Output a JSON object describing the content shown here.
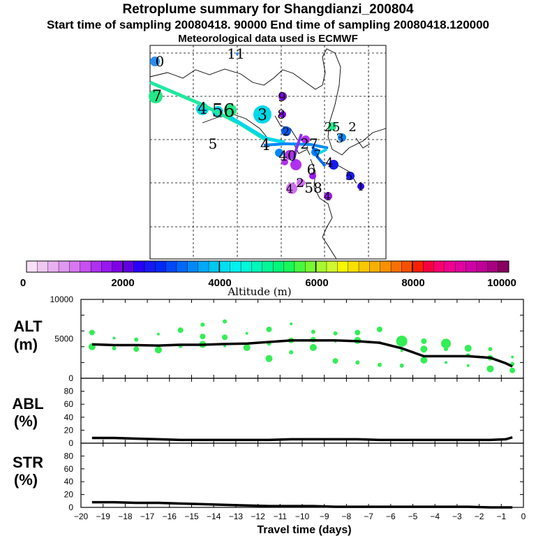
{
  "header": {
    "title": "Retroplume summary for Shangdianzi_200804",
    "subtitle": "Start time of sampling 20080418. 90000     End time of sampling 20080418.120000",
    "met_note": "Meteorological data used is ECMWF"
  },
  "map_labels": [
    "0",
    "11",
    "7",
    "4",
    "56",
    "3",
    "9",
    "8",
    "2",
    "25",
    "2",
    "3",
    "5",
    "4",
    "40",
    "27",
    "7",
    "4",
    "5",
    "1",
    "6",
    "2",
    "58",
    "4",
    "4"
  ],
  "colorbar": {
    "tick_labels": [
      "0",
      "2000",
      "4000",
      "6000",
      "8000",
      "10000"
    ],
    "label": "Altitude (m)",
    "colors": [
      "#f8e0f8",
      "#f0c8f0",
      "#e8b0f0",
      "#e098f0",
      "#d878f0",
      "#c850f0",
      "#b030f0",
      "#9818f0",
      "#8000e8",
      "#6000e0",
      "#2800f8",
      "#1818f0",
      "#0028f8",
      "#0048f8",
      "#0068f8",
      "#0088f8",
      "#00a8f8",
      "#00c8f0",
      "#00e0f0",
      "#00f0f0",
      "#00f8d8",
      "#00f8b8",
      "#00f898",
      "#00f878",
      "#18f858",
      "#48f840",
      "#78f830",
      "#a8f830",
      "#d0f830",
      "#f8f800",
      "#f8e000",
      "#f8c800",
      "#f8b000",
      "#f89000",
      "#f87000",
      "#f85000",
      "#f82000",
      "#f80040",
      "#f80070",
      "#f00090",
      "#e000a0",
      "#d000a8",
      "#c00098",
      "#a80080",
      "#880060"
    ]
  },
  "chart_data": [
    {
      "type": "line",
      "panel": "ALT",
      "ylabel": "ALT\n(m)",
      "ylim": [
        0,
        10000
      ],
      "yticks": [
        "10000",
        "5000",
        "0"
      ],
      "x": [
        -19.5,
        -18.5,
        -17.5,
        -16.5,
        -15.5,
        -14.5,
        -13.5,
        -12.5,
        -11.5,
        -10.5,
        -9.5,
        -8.5,
        -7.5,
        -6.5,
        -5.5,
        -4.5,
        -3.5,
        -2.5,
        -1.5,
        -0.8,
        -0.5
      ],
      "series": [
        {
          "name": "median altitude",
          "values": [
            4300,
            4200,
            4200,
            4150,
            4250,
            4250,
            4350,
            4400,
            4600,
            4800,
            4800,
            4800,
            4700,
            4500,
            3800,
            2800,
            2800,
            2800,
            2600,
            1900,
            1500
          ]
        }
      ],
      "scatter_values": [
        [
          -19.5,
          4000
        ],
        [
          -19.5,
          5800
        ],
        [
          -18.5,
          3800
        ],
        [
          -18.5,
          5100
        ],
        [
          -17.5,
          3700
        ],
        [
          -17.5,
          4900
        ],
        [
          -16.5,
          3600
        ],
        [
          -16.5,
          5600
        ],
        [
          -15.5,
          4100
        ],
        [
          -15.5,
          6100
        ],
        [
          -14.5,
          4300
        ],
        [
          -14.5,
          5300
        ],
        [
          -14.5,
          6800
        ],
        [
          -13.5,
          4100
        ],
        [
          -13.5,
          5200
        ],
        [
          -13.5,
          7200
        ],
        [
          -12.5,
          3900
        ],
        [
          -12.5,
          5700
        ],
        [
          -11.5,
          4400
        ],
        [
          -11.5,
          6200
        ],
        [
          -11.5,
          2500
        ],
        [
          -10.5,
          4800
        ],
        [
          -10.5,
          3300
        ],
        [
          -10.5,
          6900
        ],
        [
          -9.5,
          4900
        ],
        [
          -9.5,
          5900
        ],
        [
          -9.5,
          3900
        ],
        [
          -8.5,
          4700
        ],
        [
          -8.5,
          5700
        ],
        [
          -8.5,
          2200
        ],
        [
          -7.5,
          4800
        ],
        [
          -7.5,
          5800
        ],
        [
          -7.5,
          2000
        ],
        [
          -6.5,
          4500
        ],
        [
          -6.5,
          6200
        ],
        [
          -6.5,
          1700
        ],
        [
          -5.5,
          4600
        ],
        [
          -5.5,
          3500
        ],
        [
          -5.5,
          1600
        ],
        [
          -4.5,
          3700
        ],
        [
          -4.5,
          2300
        ],
        [
          -4.5,
          4700
        ],
        [
          -3.5,
          3700
        ],
        [
          -3.5,
          2000
        ],
        [
          -3.5,
          4500
        ],
        [
          -2.5,
          2900
        ],
        [
          -2.5,
          3800
        ],
        [
          -2.5,
          1600
        ],
        [
          -1.5,
          3700
        ],
        [
          -1.5,
          2600
        ],
        [
          -1.5,
          1200
        ],
        [
          -0.5,
          1000
        ],
        [
          -0.5,
          1800
        ],
        [
          -0.5,
          2700
        ]
      ]
    },
    {
      "type": "line",
      "panel": "ABL",
      "ylabel": "ABL\n(%)",
      "ylim": [
        0,
        100
      ],
      "yticks": [
        "80",
        "60",
        "40",
        "20",
        "0"
      ],
      "x": [
        -19.5,
        -18.5,
        -17.5,
        -16.5,
        -15.5,
        -14.5,
        -13.5,
        -12.5,
        -11.5,
        -10.5,
        -9.5,
        -8.5,
        -7.5,
        -6.5,
        -5.5,
        -4.5,
        -3.5,
        -2.5,
        -1.5,
        -0.8,
        -0.5
      ],
      "series": [
        {
          "name": "ABL fraction",
          "values": [
            8,
            8,
            7,
            6,
            5,
            5,
            5,
            5,
            5,
            6,
            6,
            6,
            6,
            5,
            5,
            5,
            5,
            5,
            5,
            6,
            9
          ]
        }
      ]
    },
    {
      "type": "line",
      "panel": "STR",
      "ylabel": "STR\n(%)",
      "ylim": [
        0,
        100
      ],
      "yticks": [
        "80",
        "60",
        "40",
        "20",
        "0"
      ],
      "x": [
        -19.5,
        -18.5,
        -17.5,
        -16.5,
        -15.5,
        -14.5,
        -13.5,
        -12.5,
        -11.5,
        -10.5,
        -9.5,
        -8.5,
        -7.5,
        -6.5,
        -5.5,
        -4.5,
        -3.5,
        -2.5,
        -1.5,
        -0.8,
        -0.5
      ],
      "series": [
        {
          "name": "STR fraction",
          "values": [
            8,
            8,
            7,
            7,
            6,
            5,
            4,
            3,
            2,
            2,
            2,
            1,
            1,
            1,
            1,
            1,
            1,
            1,
            0,
            0,
            0
          ]
        }
      ]
    }
  ],
  "xaxis": {
    "tick_labels": [
      "−20",
      "−19",
      "−18",
      "−17",
      "−16",
      "−15",
      "−14",
      "−13",
      "−12",
      "−11",
      "−10",
      "−9",
      "−8",
      "−7",
      "−6",
      "−5",
      "−4",
      "−3",
      "−2",
      "−1",
      "0"
    ],
    "label": "Travel time (days)",
    "range": [
      -20,
      0
    ]
  }
}
